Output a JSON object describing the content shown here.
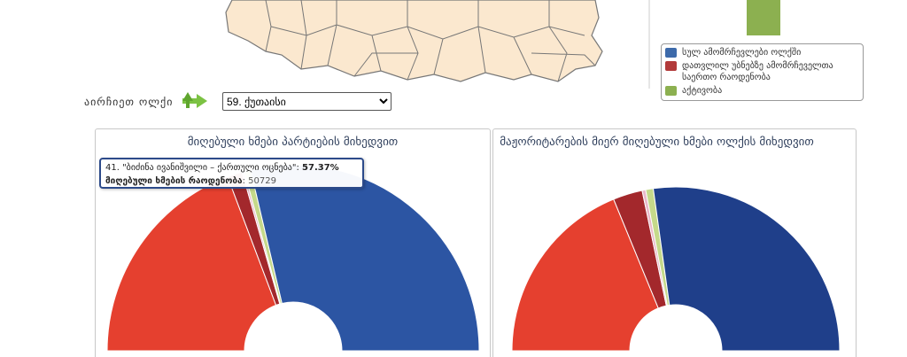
{
  "header": {
    "select_label": "აირჩიეთ ოლქი",
    "selected": "59. ქუთაისი"
  },
  "legend": {
    "items": [
      {
        "name": "სულ ამომრჩევლები ოლქში",
        "color": "#3d6aaa"
      },
      {
        "name": "დათვლილ უბნებზე ამომრჩეველთა საერთო რაოდენობა",
        "color": "#b23a3a"
      },
      {
        "name": "აქტივობა",
        "color": "#8cb050"
      }
    ]
  },
  "chart_data": [
    {
      "type": "pie",
      "title": "მიღებული ხმები პარტიების მიხედვით",
      "values": [
        38.53,
        2.6,
        0.4,
        1.1,
        57.37
      ],
      "value_labels": [
        null,
        null,
        null,
        null,
        "57.37%"
      ],
      "colors": [
        "#e5402f",
        "#a3282c",
        "#e9b8c9",
        "#c5d98a",
        "#2c55a3"
      ],
      "tooltip": {
        "title": "41. \"ბიძინა ივანიშვილი – ქართული ოცნება\":",
        "votes_label": "მიღებული ხმების რაოდენობა",
        "votes": {
          "value": 50729,
          "label": ": 50729"
        }
      }
    },
    {
      "type": "pie",
      "title": "მაჟორიტარების მიერ მიღებული ხმები ოლქის მიხედვით",
      "values": [
        37.6,
        5.8,
        0.7,
        1.5,
        54.4
      ],
      "colors": [
        "#e5402f",
        "#a3282c",
        "#e9b8c9",
        "#c5d98a",
        "#1f3f8a"
      ]
    }
  ]
}
